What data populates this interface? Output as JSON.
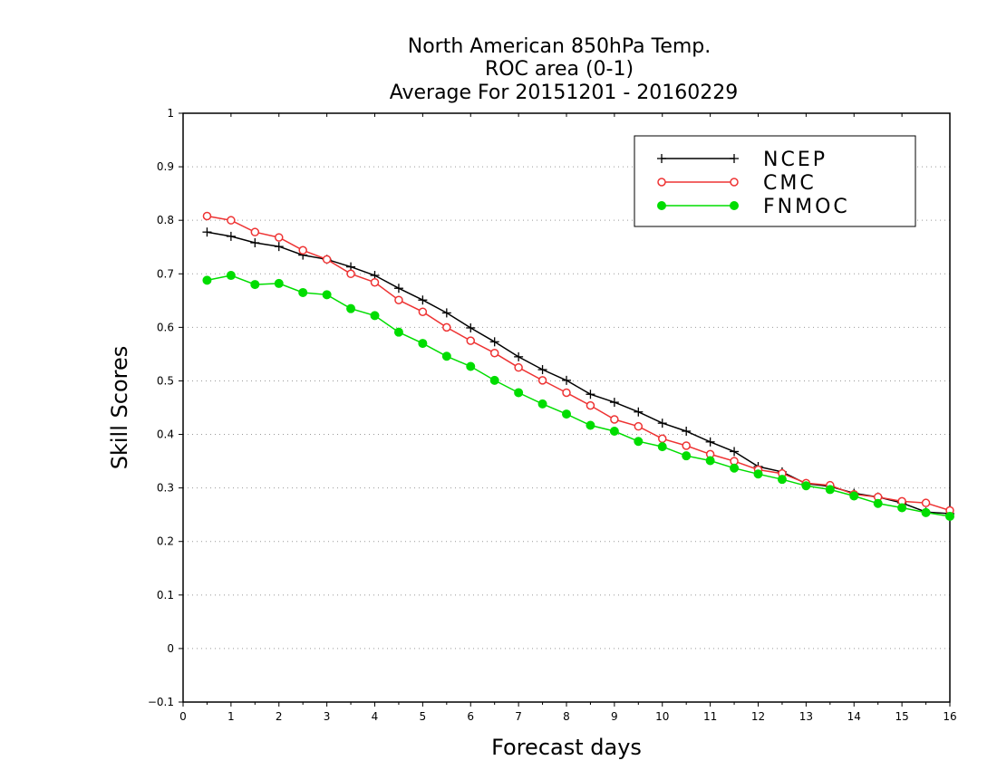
{
  "chart_data": {
    "type": "line",
    "title_lines": [
      "North American 850hPa Temp.",
      "ROC area (0-1)",
      "Average For 20151201 - 20160229"
    ],
    "xlabel": "Forecast days",
    "ylabel": "Skill Scores",
    "xlim": [
      0,
      16
    ],
    "ylim": [
      -0.1,
      1
    ],
    "x_ticks": [
      "0",
      "1",
      "2",
      "3",
      "4",
      "5",
      "6",
      "7",
      "8",
      "9",
      "10",
      "11",
      "12",
      "13",
      "14",
      "15",
      "16"
    ],
    "y_ticks": [
      "−0.1",
      "0",
      "0.1",
      "0.2",
      "0.3",
      "0.4",
      "0.5",
      "0.6",
      "0.7",
      "0.8",
      "0.9",
      "1"
    ],
    "grid": "horizontal dotted",
    "legend_position": "top-right",
    "x": [
      0.5,
      1,
      1.5,
      2,
      2.5,
      3,
      3.5,
      4,
      4.5,
      5,
      5.5,
      6,
      6.5,
      7,
      7.5,
      8,
      8.5,
      9,
      9.5,
      10,
      10.5,
      11,
      11.5,
      12,
      12.5,
      13,
      13.5,
      14,
      14.5,
      15,
      15.5,
      16
    ],
    "series": [
      {
        "name": "NCEP",
        "color": "#000000",
        "marker": "plus",
        "values": [
          0.778,
          0.77,
          0.758,
          0.751,
          0.735,
          0.727,
          0.713,
          0.697,
          0.673,
          0.651,
          0.627,
          0.599,
          0.573,
          0.545,
          0.521,
          0.501,
          0.475,
          0.46,
          0.442,
          0.421,
          0.406,
          0.386,
          0.368,
          0.34,
          0.33,
          0.308,
          0.303,
          0.29,
          0.283,
          0.272,
          0.255,
          0.252
        ]
      },
      {
        "name": "CMC",
        "color": "#ee3333",
        "marker": "open-circle",
        "values": [
          0.808,
          0.8,
          0.778,
          0.768,
          0.744,
          0.727,
          0.7,
          0.684,
          0.651,
          0.629,
          0.6,
          0.575,
          0.552,
          0.525,
          0.501,
          0.478,
          0.454,
          0.428,
          0.415,
          0.392,
          0.379,
          0.363,
          0.35,
          0.334,
          0.327,
          0.309,
          0.305,
          0.288,
          0.283,
          0.275,
          0.272,
          0.258
        ]
      },
      {
        "name": "FNMOC",
        "color": "#00dd00",
        "marker": "filled-circle",
        "values": [
          0.688,
          0.697,
          0.68,
          0.682,
          0.665,
          0.661,
          0.635,
          0.622,
          0.591,
          0.57,
          0.546,
          0.527,
          0.501,
          0.478,
          0.457,
          0.438,
          0.417,
          0.406,
          0.387,
          0.377,
          0.36,
          0.351,
          0.337,
          0.326,
          0.316,
          0.304,
          0.297,
          0.285,
          0.271,
          0.263,
          0.254,
          0.247
        ]
      }
    ]
  }
}
